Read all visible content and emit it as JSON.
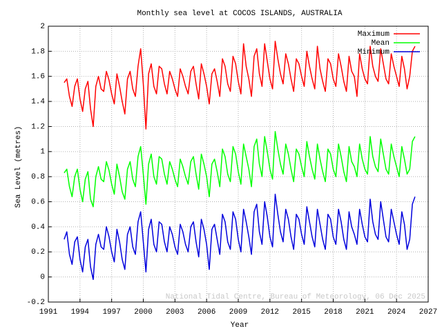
{
  "chart_data": {
    "type": "line",
    "title": "Monthly sea level at COCOS ISLANDS, AUSTRALIA",
    "xlabel": "Year",
    "ylabel": "Sea Level (metres)",
    "annotation": "National Tidal Centre, Bureau of Meteorology, 06 Dec 2025",
    "xlim": [
      1991,
      2027
    ],
    "xticks": [
      1991,
      1994,
      1997,
      2000,
      2003,
      2006,
      2009,
      2012,
      2015,
      2018,
      2021,
      2024,
      2027
    ],
    "ylim": [
      -0.2,
      2
    ],
    "yticks": [
      -0.2,
      0,
      0.2,
      0.4,
      0.6,
      0.8,
      1,
      1.2,
      1.4,
      1.6,
      1.8,
      2
    ],
    "grid": true,
    "legend": "upper right",
    "x": [
      1992.5,
      1992.75,
      1993,
      1993.25,
      1993.5,
      1993.75,
      1994,
      1994.25,
      1994.5,
      1994.75,
      1995,
      1995.25,
      1995.5,
      1995.75,
      1996,
      1996.25,
      1996.5,
      1996.75,
      1997,
      1997.25,
      1997.5,
      1997.75,
      1998,
      1998.25,
      1998.5,
      1998.75,
      1999,
      1999.25,
      1999.5,
      1999.75,
      2000,
      2000.25,
      2000.5,
      2000.75,
      2001,
      2001.25,
      2001.5,
      2001.75,
      2002,
      2002.25,
      2002.5,
      2002.75,
      2003,
      2003.25,
      2003.5,
      2003.75,
      2004,
      2004.25,
      2004.5,
      2004.75,
      2005,
      2005.25,
      2005.5,
      2005.75,
      2006,
      2006.25,
      2006.5,
      2006.75,
      2007,
      2007.25,
      2007.5,
      2007.75,
      2008,
      2008.25,
      2008.5,
      2008.75,
      2009,
      2009.25,
      2009.5,
      2009.75,
      2010,
      2010.25,
      2010.5,
      2010.75,
      2011,
      2011.25,
      2011.5,
      2011.75,
      2012,
      2012.25,
      2012.5,
      2012.75,
      2013,
      2013.25,
      2013.5,
      2013.75,
      2014,
      2014.25,
      2014.5,
      2014.75,
      2015,
      2015.25,
      2015.5,
      2015.75,
      2016,
      2016.25,
      2016.5,
      2016.75,
      2017,
      2017.25,
      2017.5,
      2017.75,
      2018,
      2018.25,
      2018.5,
      2018.75,
      2019,
      2019.25,
      2019.5,
      2019.75,
      2020,
      2020.25,
      2020.5,
      2020.75,
      2021,
      2021.25,
      2021.5,
      2021.75,
      2022,
      2022.25,
      2022.5,
      2022.75,
      2023,
      2023.25,
      2023.5,
      2023.75,
      2024,
      2024.25,
      2024.5,
      2024.75,
      2025,
      2025.25,
      2025.5,
      2025.75
    ],
    "series": [
      {
        "name": "Maximum",
        "color": "#ff0000",
        "values": [
          1.55,
          1.58,
          1.44,
          1.36,
          1.52,
          1.58,
          1.42,
          1.32,
          1.5,
          1.56,
          1.34,
          1.2,
          1.52,
          1.6,
          1.5,
          1.48,
          1.64,
          1.57,
          1.46,
          1.38,
          1.62,
          1.52,
          1.4,
          1.3,
          1.58,
          1.64,
          1.5,
          1.44,
          1.68,
          1.82,
          1.54,
          1.18,
          1.62,
          1.7,
          1.52,
          1.46,
          1.68,
          1.66,
          1.54,
          1.46,
          1.64,
          1.58,
          1.5,
          1.44,
          1.66,
          1.6,
          1.52,
          1.46,
          1.64,
          1.68,
          1.54,
          1.42,
          1.7,
          1.62,
          1.52,
          1.38,
          1.62,
          1.66,
          1.56,
          1.44,
          1.74,
          1.68,
          1.54,
          1.48,
          1.76,
          1.7,
          1.56,
          1.46,
          1.86,
          1.68,
          1.58,
          1.44,
          1.76,
          1.82,
          1.62,
          1.52,
          1.86,
          1.72,
          1.58,
          1.5,
          1.88,
          1.74,
          1.62,
          1.54,
          1.78,
          1.7,
          1.58,
          1.48,
          1.74,
          1.7,
          1.6,
          1.52,
          1.8,
          1.68,
          1.58,
          1.5,
          1.84,
          1.66,
          1.56,
          1.48,
          1.74,
          1.7,
          1.58,
          1.52,
          1.78,
          1.68,
          1.56,
          1.48,
          1.76,
          1.64,
          1.6,
          1.44,
          1.78,
          1.66,
          1.58,
          1.54,
          1.84,
          1.68,
          1.6,
          1.56,
          1.82,
          1.7,
          1.58,
          1.54,
          1.78,
          1.68,
          1.6,
          1.52,
          1.76,
          1.66,
          1.5,
          1.6,
          1.8,
          1.84
        ]
      },
      {
        "name": "Mean",
        "color": "#00ff00",
        "values": [
          0.83,
          0.86,
          0.72,
          0.64,
          0.8,
          0.86,
          0.7,
          0.6,
          0.78,
          0.84,
          0.62,
          0.56,
          0.8,
          0.88,
          0.78,
          0.76,
          0.92,
          0.85,
          0.74,
          0.66,
          0.9,
          0.8,
          0.68,
          0.62,
          0.86,
          0.92,
          0.78,
          0.72,
          0.96,
          1.04,
          0.82,
          0.58,
          0.9,
          0.98,
          0.8,
          0.74,
          0.96,
          0.94,
          0.82,
          0.74,
          0.92,
          0.86,
          0.78,
          0.72,
          0.94,
          0.88,
          0.8,
          0.74,
          0.92,
          0.96,
          0.82,
          0.7,
          0.98,
          0.9,
          0.8,
          0.64,
          0.9,
          0.94,
          0.84,
          0.72,
          1.02,
          0.96,
          0.82,
          0.76,
          1.04,
          0.98,
          0.84,
          0.74,
          1.06,
          0.96,
          0.86,
          0.72,
          1.04,
          1.1,
          0.9,
          0.8,
          1.12,
          1.0,
          0.86,
          0.78,
          1.16,
          1.02,
          0.9,
          0.82,
          1.06,
          0.98,
          0.86,
          0.76,
          1.02,
          0.98,
          0.88,
          0.8,
          1.08,
          0.96,
          0.86,
          0.78,
          1.06,
          0.94,
          0.84,
          0.76,
          1.02,
          0.98,
          0.86,
          0.8,
          1.06,
          0.96,
          0.84,
          0.76,
          1.04,
          0.92,
          0.88,
          0.8,
          1.06,
          0.94,
          0.86,
          0.82,
          1.12,
          0.96,
          0.88,
          0.84,
          1.1,
          0.98,
          0.86,
          0.82,
          1.06,
          0.96,
          0.88,
          0.8,
          1.04,
          0.94,
          0.82,
          0.86,
          1.08,
          1.12
        ]
      },
      {
        "name": "Minimum",
        "color": "#0000dd",
        "values": [
          0.3,
          0.36,
          0.18,
          0.1,
          0.28,
          0.32,
          0.14,
          0.04,
          0.24,
          0.3,
          0.08,
          -0.02,
          0.26,
          0.34,
          0.24,
          0.22,
          0.4,
          0.32,
          0.2,
          0.12,
          0.38,
          0.28,
          0.14,
          0.06,
          0.34,
          0.4,
          0.24,
          0.18,
          0.44,
          0.52,
          0.28,
          0.04,
          0.38,
          0.46,
          0.26,
          0.2,
          0.44,
          0.42,
          0.28,
          0.2,
          0.4,
          0.34,
          0.24,
          0.18,
          0.42,
          0.36,
          0.26,
          0.2,
          0.4,
          0.44,
          0.28,
          0.16,
          0.46,
          0.38,
          0.26,
          0.06,
          0.38,
          0.42,
          0.3,
          0.18,
          0.5,
          0.44,
          0.28,
          0.22,
          0.52,
          0.46,
          0.3,
          0.2,
          0.54,
          0.44,
          0.32,
          0.18,
          0.52,
          0.58,
          0.36,
          0.26,
          0.6,
          0.48,
          0.32,
          0.24,
          0.66,
          0.5,
          0.36,
          0.28,
          0.54,
          0.46,
          0.32,
          0.22,
          0.5,
          0.46,
          0.34,
          0.26,
          0.56,
          0.44,
          0.32,
          0.24,
          0.54,
          0.42,
          0.3,
          0.22,
          0.5,
          0.46,
          0.32,
          0.26,
          0.54,
          0.44,
          0.3,
          0.22,
          0.52,
          0.4,
          0.34,
          0.26,
          0.54,
          0.42,
          0.32,
          0.28,
          0.62,
          0.44,
          0.34,
          0.3,
          0.6,
          0.46,
          0.32,
          0.28,
          0.54,
          0.44,
          0.34,
          0.26,
          0.52,
          0.42,
          0.22,
          0.3,
          0.58,
          0.64
        ]
      }
    ]
  }
}
